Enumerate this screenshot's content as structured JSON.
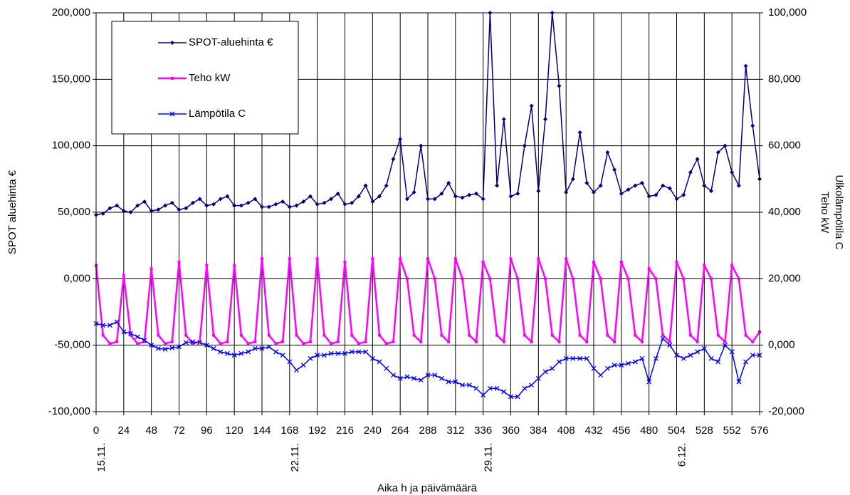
{
  "chart_data": {
    "type": "line",
    "x_label": "Aika h ja päivämäärä",
    "y_label": "SPOT aluehinta €",
    "y2_label": "Teho kW",
    "y2_label_outer": "Ulkolämpötila C",
    "x": [
      0,
      6,
      12,
      18,
      24,
      30,
      36,
      42,
      48,
      54,
      60,
      66,
      72,
      78,
      84,
      90,
      96,
      102,
      108,
      114,
      120,
      126,
      132,
      138,
      144,
      150,
      156,
      162,
      168,
      174,
      180,
      186,
      192,
      198,
      204,
      210,
      216,
      222,
      228,
      234,
      240,
      246,
      252,
      258,
      264,
      270,
      276,
      282,
      288,
      294,
      300,
      306,
      312,
      318,
      324,
      330,
      336,
      342,
      348,
      354,
      360,
      366,
      372,
      378,
      384,
      390,
      396,
      402,
      408,
      414,
      420,
      426,
      432,
      438,
      444,
      450,
      456,
      462,
      468,
      474,
      480,
      486,
      492,
      498,
      504,
      510,
      516,
      522,
      528,
      534,
      540,
      546,
      552,
      558,
      564,
      570,
      576
    ],
    "xlim": [
      0,
      576
    ],
    "xticks": [
      0,
      24,
      48,
      72,
      96,
      120,
      144,
      168,
      192,
      216,
      240,
      264,
      288,
      312,
      336,
      360,
      384,
      408,
      432,
      456,
      480,
      504,
      528,
      552,
      576
    ],
    "x_date_labels": [
      {
        "value": 0,
        "label": "15.11."
      },
      {
        "value": 168,
        "label": "22.11."
      },
      {
        "value": 336,
        "label": "29.11."
      },
      {
        "value": 504,
        "label": "6.12."
      }
    ],
    "ylim": [
      -100,
      200
    ],
    "yticks": [
      {
        "value": -100,
        "label": "-100,000"
      },
      {
        "value": -50,
        "label": "-50,000"
      },
      {
        "value": 0,
        "label": "0,000"
      },
      {
        "value": 50,
        "label": "50,000"
      },
      {
        "value": 100,
        "label": "100,000"
      },
      {
        "value": 150,
        "label": "150,000"
      },
      {
        "value": 200,
        "label": "200,000"
      }
    ],
    "y2lim": [
      -20,
      100
    ],
    "y2ticks": [
      {
        "value": -20,
        "label": "-20,000"
      },
      {
        "value": 0,
        "label": "0,000"
      },
      {
        "value": 20,
        "label": "20,000"
      },
      {
        "value": 40,
        "label": "40,000"
      },
      {
        "value": 60,
        "label": "60,000"
      },
      {
        "value": 80,
        "label": "80,000"
      },
      {
        "value": 100,
        "label": "100,000"
      }
    ],
    "grid": true,
    "legend": "top-left",
    "series": [
      {
        "name": "SPOT-aluehinta €",
        "color": "#000080",
        "marker": "diamond",
        "axis": "y",
        "values": [
          48,
          49,
          53,
          55,
          51,
          50,
          55,
          58,
          51,
          52,
          55,
          57,
          52,
          53,
          57,
          60,
          55,
          56,
          60,
          62,
          55,
          55,
          57,
          60,
          54,
          54,
          56,
          58,
          54,
          55,
          58,
          62,
          56,
          57,
          60,
          64,
          56,
          57,
          62,
          70,
          58,
          62,
          70,
          90,
          105,
          60,
          65,
          100,
          60,
          60,
          64,
          72,
          62,
          61,
          63,
          64,
          60,
          200,
          70,
          120,
          62,
          64,
          100,
          130,
          66,
          120,
          200,
          145,
          65,
          75,
          110,
          72,
          65,
          70,
          95,
          82,
          64,
          67,
          70,
          72,
          62,
          63,
          70,
          68,
          60,
          63,
          80,
          90,
          70,
          66,
          95,
          100,
          80,
          70,
          160,
          115,
          75
        ]
      },
      {
        "name": "Teho kW",
        "color": "#ff00ff",
        "marker": "square",
        "axis": "y2",
        "values": [
          24,
          3,
          0.5,
          1,
          21,
          3,
          0.5,
          1,
          23,
          3,
          0.5,
          1,
          25,
          3,
          0.5,
          1,
          24,
          3,
          0.5,
          1,
          24,
          3,
          0.5,
          1,
          26,
          3,
          0.5,
          1,
          26,
          3,
          0.5,
          1,
          26,
          3,
          0.5,
          1,
          25,
          3,
          0.5,
          1,
          26,
          3,
          0.5,
          1,
          26,
          20,
          3,
          1,
          26,
          20,
          3,
          1,
          26,
          20,
          3,
          1,
          25,
          20,
          3,
          1,
          26,
          20,
          3,
          1,
          26,
          20,
          3,
          1,
          26,
          20,
          3,
          1,
          25,
          20,
          3,
          1,
          25,
          20,
          3,
          1,
          23,
          20,
          3,
          1,
          25,
          20,
          3,
          1,
          24,
          20,
          3,
          1,
          24,
          20,
          3,
          1,
          4
        ]
      },
      {
        "name": "Lämpötila C",
        "color": "#0000ff",
        "marker": "x",
        "axis": "y2",
        "values": [
          6.5,
          6,
          6,
          7,
          4,
          3.5,
          2.5,
          1.5,
          0,
          -1,
          -1.2,
          -0.8,
          -0.5,
          0.8,
          1,
          0.8,
          0,
          -1,
          -2,
          -2.5,
          -3,
          -2.5,
          -2,
          -1,
          -1,
          -0.5,
          -2,
          -3,
          -5,
          -7.5,
          -6,
          -4,
          -3,
          -3,
          -2.5,
          -2.5,
          -2.5,
          -2,
          -2,
          -2,
          -4,
          -5,
          -7,
          -9,
          -10,
          -9.5,
          -10,
          -10.5,
          -9,
          -9,
          -10,
          -11,
          -11,
          -12,
          -12,
          -13,
          -15,
          -13,
          -13,
          -14,
          -15.5,
          -15.5,
          -13,
          -12,
          -10,
          -8,
          -7,
          -5,
          -4,
          -4,
          -4,
          -4,
          -7,
          -9,
          -7,
          -6,
          -6,
          -5.5,
          -5,
          -4,
          -11,
          -4,
          2,
          0,
          -3,
          -4,
          -3,
          -2,
          -1,
          -4,
          -5,
          0,
          -2,
          -11,
          -5,
          -3,
          -3
        ]
      }
    ]
  }
}
